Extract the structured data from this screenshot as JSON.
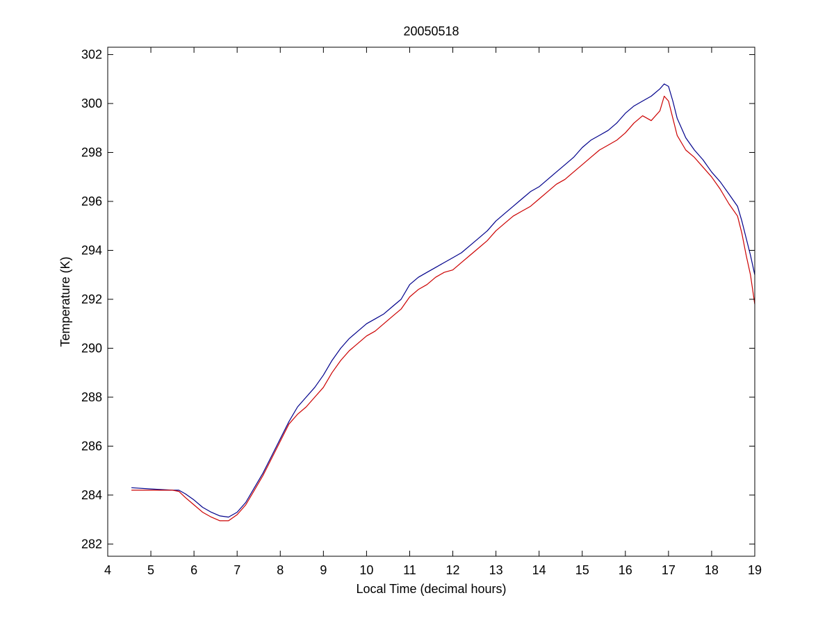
{
  "chart_data": {
    "type": "line",
    "title": "20050518",
    "xlabel": "Local Time (decimal hours)",
    "ylabel": "Temperature (K)",
    "xlim": [
      4,
      19
    ],
    "ylim": [
      281.5,
      302.3
    ],
    "xticks": [
      4,
      5,
      6,
      7,
      8,
      9,
      10,
      11,
      12,
      13,
      14,
      15,
      16,
      17,
      18,
      19
    ],
    "yticks": [
      282,
      284,
      286,
      288,
      290,
      292,
      294,
      296,
      298,
      300,
      302
    ],
    "grid": false,
    "legend": "none",
    "series": [
      {
        "color": "#00008b",
        "x": [
          4.55,
          5.0,
          5.5,
          5.65,
          5.8,
          6.0,
          6.2,
          6.4,
          6.6,
          6.8,
          7.0,
          7.2,
          7.4,
          7.6,
          7.8,
          8.0,
          8.2,
          8.4,
          8.6,
          8.8,
          9.0,
          9.2,
          9.4,
          9.6,
          9.8,
          10.0,
          10.2,
          10.4,
          10.6,
          10.8,
          11.0,
          11.2,
          11.4,
          11.6,
          11.8,
          12.0,
          12.2,
          12.4,
          12.6,
          12.8,
          13.0,
          13.2,
          13.4,
          13.6,
          13.8,
          14.0,
          14.2,
          14.4,
          14.6,
          14.8,
          15.0,
          15.2,
          15.4,
          15.6,
          15.8,
          16.0,
          16.2,
          16.4,
          16.6,
          16.8,
          16.9,
          17.0,
          17.1,
          17.2,
          17.4,
          17.6,
          17.8,
          18.0,
          18.2,
          18.4,
          18.6,
          18.7,
          18.8,
          18.9,
          19.0
        ],
        "y": [
          284.3,
          284.25,
          284.2,
          284.2,
          284.05,
          283.8,
          283.5,
          283.3,
          283.15,
          283.1,
          283.3,
          283.7,
          284.3,
          284.9,
          285.6,
          286.3,
          287.0,
          287.6,
          288.0,
          288.4,
          288.9,
          289.5,
          290.0,
          290.4,
          290.7,
          291.0,
          291.2,
          291.4,
          291.7,
          292.0,
          292.6,
          292.9,
          293.1,
          293.3,
          293.5,
          293.7,
          293.9,
          294.2,
          294.5,
          294.8,
          295.2,
          295.5,
          295.8,
          296.1,
          296.4,
          296.6,
          296.9,
          297.2,
          297.5,
          297.8,
          298.2,
          298.5,
          298.7,
          298.9,
          299.2,
          299.6,
          299.9,
          300.1,
          300.3,
          300.6,
          300.8,
          300.7,
          300.1,
          299.4,
          298.6,
          298.1,
          297.7,
          297.2,
          296.8,
          296.3,
          295.8,
          295.2,
          294.5,
          293.8,
          293.0
        ]
      },
      {
        "color": "#cc0000",
        "x": [
          4.55,
          5.0,
          5.5,
          5.65,
          5.8,
          6.0,
          6.2,
          6.4,
          6.6,
          6.8,
          7.0,
          7.2,
          7.4,
          7.6,
          7.8,
          8.0,
          8.2,
          8.4,
          8.6,
          8.8,
          9.0,
          9.2,
          9.4,
          9.6,
          9.8,
          10.0,
          10.2,
          10.4,
          10.6,
          10.8,
          11.0,
          11.2,
          11.4,
          11.6,
          11.8,
          12.0,
          12.2,
          12.4,
          12.6,
          12.8,
          13.0,
          13.2,
          13.4,
          13.6,
          13.8,
          14.0,
          14.2,
          14.4,
          14.6,
          14.8,
          15.0,
          15.2,
          15.4,
          15.6,
          15.8,
          16.0,
          16.2,
          16.4,
          16.6,
          16.8,
          16.9,
          17.0,
          17.1,
          17.2,
          17.4,
          17.6,
          17.8,
          18.0,
          18.2,
          18.4,
          18.6,
          18.7,
          18.8,
          18.9,
          19.0
        ],
        "y": [
          284.2,
          284.2,
          284.2,
          284.15,
          283.9,
          283.6,
          283.3,
          283.1,
          282.95,
          282.95,
          283.2,
          283.6,
          284.2,
          284.8,
          285.5,
          286.2,
          286.9,
          287.3,
          287.6,
          288.0,
          288.4,
          289.0,
          289.5,
          289.9,
          290.2,
          290.5,
          290.7,
          291.0,
          291.3,
          291.6,
          292.1,
          292.4,
          292.6,
          292.9,
          293.1,
          293.2,
          293.5,
          293.8,
          294.1,
          294.4,
          294.8,
          295.1,
          295.4,
          295.6,
          295.8,
          296.1,
          296.4,
          296.7,
          296.9,
          297.2,
          297.5,
          297.8,
          298.1,
          298.3,
          298.5,
          298.8,
          299.2,
          299.5,
          299.3,
          299.7,
          300.3,
          300.1,
          299.4,
          298.7,
          298.1,
          297.8,
          297.4,
          297.0,
          296.5,
          295.9,
          295.4,
          294.7,
          293.8,
          293.0,
          291.8
        ]
      }
    ]
  }
}
